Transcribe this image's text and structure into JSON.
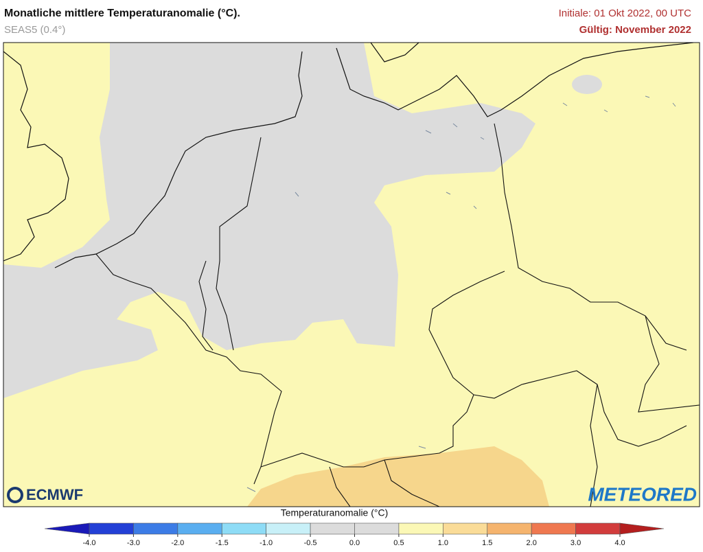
{
  "header": {
    "title": "Monatliche mittlere Temperaturanomalie (°C).",
    "subtitle": "SEAS5 (0.4°)",
    "initial": "Initiale: 01 Okt 2022, 00 UTC",
    "valid": "Gültig: November 2022"
  },
  "logos": {
    "left": "ECMWF",
    "right": "METEORED"
  },
  "colorbar": {
    "title": "Temperaturanomalie (°C)",
    "ticks": [
      {
        "value": -4,
        "label": "-4.0"
      },
      {
        "value": -3,
        "label": "-3.0"
      },
      {
        "value": -2,
        "label": "-2.0"
      },
      {
        "value": -1.5,
        "label": "-1.5"
      },
      {
        "value": -1,
        "label": "-1.0"
      },
      {
        "value": -0.5,
        "label": "-0.5"
      },
      {
        "value": 0,
        "label": "0.0"
      },
      {
        "value": 0.5,
        "label": "0.5"
      },
      {
        "value": 1,
        "label": "1.0"
      },
      {
        "value": 1.5,
        "label": "1.5"
      },
      {
        "value": 2,
        "label": "2.0"
      },
      {
        "value": 3,
        "label": "3.0"
      },
      {
        "value": 4,
        "label": "4.0"
      }
    ],
    "colors": [
      "#2340d6",
      "#3c7ce6",
      "#5aaef0",
      "#8edcf6",
      "#c8f0f8",
      "#dcdcdc",
      "#dcdcdc",
      "#fbf8b6",
      "#fadc98",
      "#f5b46e",
      "#ef7850",
      "#d23c3c"
    ],
    "extend_colors": [
      "#1a1ab8",
      "#b41e1e"
    ]
  }
}
